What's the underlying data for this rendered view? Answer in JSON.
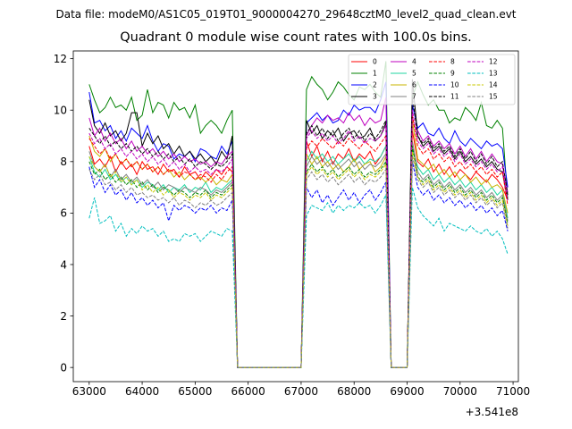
{
  "figure": {
    "suptitle": "Data file: modeM0/AS1C05_019T01_9000004270_29648cztM0_level2_quad_clean.evt"
  },
  "chart_data": {
    "type": "line",
    "title": "Quadrant 0 module wise count rates with 100.0s bins.",
    "xlabel": "",
    "ylabel": "",
    "offset_label": "+3.541e8",
    "xlim": [
      62700,
      71100
    ],
    "ylim": [
      -0.55,
      12.3
    ],
    "xticks": [
      63000,
      64000,
      65000,
      66000,
      67000,
      68000,
      69000,
      70000,
      71000
    ],
    "xtick_labels": [
      "63000",
      "64000",
      "65000",
      "66000",
      "67000",
      "68000",
      "69000",
      "70000",
      "71000"
    ],
    "yticks": [
      0,
      2,
      4,
      6,
      8,
      10,
      12
    ],
    "ytick_labels": [
      "0",
      "2",
      "4",
      "6",
      "8",
      "10",
      "12"
    ],
    "x_start": 63000,
    "x_step": 100,
    "legend_position": "top-right",
    "series": [
      {
        "name": "0",
        "color": "#ff0000",
        "dash": false,
        "seg1": [
          8.6,
          7.9,
          8.1,
          7.8,
          8.2,
          7.6,
          8.0,
          7.7,
          7.9,
          7.5,
          8.0,
          7.7,
          7.8,
          7.5,
          7.9,
          7.6,
          7.7,
          7.4,
          7.8,
          7.5,
          7.6,
          7.3,
          7.6,
          7.4,
          7.7,
          7.5,
          7.8,
          7.6
        ],
        "seg2": [
          8.8,
          8.2,
          8.6,
          8.0,
          8.4,
          7.9,
          8.3,
          8.1,
          8.5,
          8.0,
          8.3,
          8.1,
          8.4,
          7.9,
          8.2,
          8.6
        ],
        "seg3": [
          9.2,
          8.0,
          7.8,
          8.1,
          7.6,
          7.9,
          7.5,
          7.8,
          7.4,
          7.7,
          7.5,
          7.3,
          7.6,
          7.4,
          7.2,
          7.5,
          7.3,
          7.0,
          6.5
        ]
      },
      {
        "name": "1",
        "color": "#008000",
        "dash": false,
        "seg1": [
          11.0,
          10.4,
          9.9,
          10.1,
          10.5,
          10.1,
          10.2,
          10.0,
          10.5,
          9.6,
          9.8,
          10.8,
          9.9,
          10.3,
          10.2,
          9.7,
          10.3,
          10.0,
          10.1,
          9.7,
          10.2,
          9.1,
          9.4,
          9.6,
          9.4,
          9.1,
          9.6,
          10.0
        ],
        "seg2": [
          10.8,
          11.3,
          11.0,
          10.8,
          10.4,
          10.7,
          11.1,
          10.9,
          10.6,
          10.4,
          10.9,
          10.8,
          11.0,
          10.7,
          10.5,
          11.9
        ],
        "seg3": [
          10.5,
          11.1,
          10.6,
          10.2,
          10.4,
          10.0,
          10.0,
          9.5,
          9.7,
          9.6,
          10.1,
          9.9,
          9.6,
          10.3,
          9.4,
          9.3,
          9.6,
          9.3,
          6.5
        ]
      },
      {
        "name": "2",
        "color": "#0000ff",
        "dash": false,
        "seg1": [
          10.7,
          9.5,
          9.6,
          9.2,
          9.4,
          8.9,
          9.2,
          8.8,
          9.3,
          9.1,
          8.9,
          9.4,
          8.8,
          8.4,
          8.7,
          8.6,
          8.1,
          8.3,
          8.2,
          8.4,
          8.0,
          8.5,
          8.4,
          8.2,
          8.1,
          8.6,
          8.3,
          8.8
        ],
        "seg2": [
          9.5,
          9.7,
          9.9,
          9.6,
          9.8,
          9.5,
          9.6,
          10.0,
          9.8,
          10.2,
          10.0,
          10.1,
          10.1,
          9.9,
          10.4,
          11.1
        ],
        "seg3": [
          10.2,
          9.3,
          9.5,
          9.1,
          9.0,
          9.3,
          8.9,
          8.7,
          9.2,
          8.8,
          8.6,
          8.9,
          8.7,
          8.5,
          8.8,
          8.6,
          8.7,
          8.5,
          7.0
        ]
      },
      {
        "name": "3",
        "color": "#000000",
        "dash": false,
        "seg1": [
          10.4,
          9.4,
          9.1,
          9.5,
          9.0,
          9.2,
          8.8,
          9.1,
          9.9,
          9.9,
          8.6,
          9.1,
          8.7,
          9.0,
          8.5,
          8.7,
          8.3,
          8.6,
          8.2,
          8.4,
          8.1,
          8.3,
          8.0,
          8.2,
          7.9,
          8.4,
          8.1,
          9.0
        ],
        "seg2": [
          9.6,
          9.1,
          9.4,
          8.9,
          9.2,
          9.0,
          9.3,
          8.8,
          9.1,
          9.2,
          8.9,
          9.0,
          9.3,
          8.8,
          9.0,
          9.5
        ],
        "seg3": [
          11.2,
          9.0,
          8.6,
          8.8,
          8.4,
          8.6,
          8.3,
          8.5,
          8.1,
          8.4,
          8.0,
          8.2,
          7.9,
          8.1,
          7.8,
          8.0,
          7.7,
          7.6,
          6.5
        ]
      },
      {
        "name": "4",
        "color": "#bf00bf",
        "dash": false,
        "seg1": [
          9.7,
          9.0,
          9.3,
          8.8,
          9.1,
          8.7,
          8.9,
          8.5,
          8.8,
          8.4,
          8.6,
          8.3,
          8.5,
          8.2,
          8.4,
          8.1,
          8.3,
          8.0,
          8.2,
          8.0,
          8.1,
          7.9,
          8.0,
          7.8,
          8.0,
          7.9,
          8.2,
          8.4
        ],
        "seg2": [
          9.0,
          9.4,
          9.7,
          9.5,
          9.8,
          9.6,
          9.7,
          9.5,
          9.9,
          9.6,
          9.8,
          9.4,
          9.7,
          9.5,
          9.6,
          10.5
        ],
        "seg3": [
          9.5,
          9.2,
          8.8,
          9.0,
          8.6,
          8.8,
          8.5,
          8.7,
          8.3,
          8.6,
          8.2,
          8.5,
          8.1,
          8.4,
          8.0,
          8.3,
          8.0,
          7.9,
          6.8
        ]
      },
      {
        "name": "5",
        "color": "#1fd6a0",
        "dash": false,
        "seg1": [
          8.2,
          7.6,
          7.4,
          7.7,
          7.3,
          7.5,
          7.2,
          7.4,
          7.1,
          7.3,
          7.0,
          7.2,
          7.1,
          6.9,
          7.1,
          6.8,
          7.0,
          6.9,
          7.1,
          6.8,
          7.0,
          6.9,
          7.2,
          6.8,
          7.0,
          6.9,
          7.1,
          7.3
        ],
        "seg2": [
          8.0,
          8.4,
          8.1,
          8.3,
          8.0,
          8.2,
          7.9,
          8.1,
          8.3,
          8.0,
          8.2,
          7.9,
          8.1,
          8.0,
          8.2,
          8.6
        ],
        "seg3": [
          8.5,
          7.8,
          7.5,
          7.7,
          7.3,
          7.5,
          7.2,
          7.4,
          7.1,
          7.3,
          7.0,
          7.2,
          6.9,
          7.1,
          6.8,
          7.0,
          6.7,
          6.9,
          5.8
        ]
      },
      {
        "name": "6",
        "color": "#c8b400",
        "dash": false,
        "seg1": [
          9.0,
          8.4,
          8.2,
          8.5,
          8.0,
          8.3,
          7.9,
          8.1,
          7.8,
          8.0,
          7.7,
          7.9,
          7.6,
          7.8,
          7.5,
          7.7,
          7.4,
          7.6,
          7.3,
          7.5,
          7.3,
          7.4,
          7.2,
          7.4,
          7.1,
          7.3,
          7.2,
          7.5
        ],
        "seg2": [
          8.3,
          7.9,
          8.2,
          7.8,
          8.0,
          7.7,
          7.9,
          7.6,
          7.8,
          8.1,
          7.7,
          7.9,
          8.0,
          7.6,
          7.8,
          8.2
        ],
        "seg3": [
          9.6,
          8.1,
          7.9,
          7.7,
          7.9,
          7.5,
          7.7,
          7.4,
          7.6,
          7.3,
          7.5,
          7.2,
          7.4,
          7.1,
          7.3,
          7.0,
          7.1,
          6.9,
          6.0
        ]
      },
      {
        "name": "7",
        "color": "#808080",
        "dash": false,
        "seg1": [
          8.4,
          7.8,
          7.6,
          7.9,
          7.4,
          7.7,
          7.3,
          7.5,
          7.2,
          7.4,
          7.1,
          7.3,
          7.0,
          7.2,
          6.9,
          7.1,
          7.0,
          6.8,
          7.0,
          6.9,
          6.8,
          7.0,
          6.9,
          6.7,
          6.9,
          6.8,
          7.0,
          7.2
        ],
        "seg2": [
          7.8,
          8.2,
          7.9,
          8.1,
          7.8,
          8.0,
          7.7,
          7.9,
          8.1,
          7.8,
          8.0,
          7.7,
          7.9,
          7.8,
          8.0,
          8.3
        ],
        "seg3": [
          8.8,
          7.6,
          7.3,
          7.5,
          7.1,
          7.3,
          7.0,
          7.2,
          6.9,
          7.1,
          6.8,
          7.0,
          6.7,
          6.9,
          6.6,
          6.8,
          6.5,
          6.7,
          5.7
        ]
      },
      {
        "name": "8",
        "color": "#ff0000",
        "dash": true,
        "seg1": [
          8.9,
          8.6,
          8.3,
          8.5,
          8.1,
          8.3,
          7.9,
          8.1,
          7.8,
          8.0,
          7.7,
          7.9,
          7.6,
          7.8,
          7.5,
          7.7,
          7.6,
          7.4,
          7.6,
          7.5,
          7.3,
          7.5,
          7.4,
          7.2,
          7.5,
          7.3,
          7.6,
          7.8
        ],
        "seg2": [
          8.5,
          8.8,
          8.6,
          8.9,
          8.7,
          8.5,
          8.8,
          8.6,
          8.9,
          8.7,
          8.5,
          8.8,
          8.6,
          8.4,
          8.7,
          9.0
        ],
        "seg3": [
          9.8,
          8.6,
          8.3,
          8.5,
          8.1,
          8.3,
          8.0,
          8.2,
          7.8,
          8.0,
          7.7,
          7.9,
          7.6,
          7.8,
          7.5,
          7.7,
          7.4,
          7.6,
          6.3
        ]
      },
      {
        "name": "9",
        "color": "#008000",
        "dash": true,
        "seg1": [
          8.0,
          7.5,
          7.7,
          7.3,
          7.5,
          7.2,
          7.4,
          7.1,
          7.3,
          7.0,
          7.2,
          6.9,
          7.1,
          6.8,
          7.0,
          6.9,
          6.7,
          6.9,
          6.8,
          6.6,
          6.8,
          6.7,
          6.9,
          6.6,
          6.8,
          6.7,
          6.9,
          7.1
        ],
        "seg2": [
          7.6,
          7.9,
          7.6,
          7.8,
          7.5,
          7.7,
          7.4,
          7.6,
          7.8,
          7.5,
          7.7,
          7.4,
          7.6,
          7.5,
          7.7,
          8.0
        ],
        "seg3": [
          8.6,
          7.4,
          7.2,
          7.4,
          7.0,
          7.2,
          6.9,
          7.1,
          6.8,
          7.0,
          6.7,
          6.9,
          6.6,
          6.8,
          6.5,
          6.7,
          6.4,
          6.6,
          5.6
        ]
      },
      {
        "name": "10",
        "color": "#0000ff",
        "dash": true,
        "seg1": [
          7.8,
          7.0,
          7.3,
          6.8,
          7.1,
          6.7,
          6.9,
          6.5,
          6.8,
          6.4,
          6.6,
          6.3,
          6.5,
          6.2,
          6.4,
          5.7,
          6.3,
          6.1,
          6.3,
          6.2,
          6.0,
          6.2,
          6.1,
          6.3,
          6.0,
          6.2,
          6.1,
          6.5
        ],
        "seg2": [
          7.0,
          6.6,
          6.9,
          6.4,
          6.7,
          6.3,
          6.6,
          6.9,
          6.5,
          6.8,
          6.4,
          6.7,
          6.9,
          6.5,
          6.8,
          7.2
        ],
        "seg3": [
          8.0,
          7.0,
          6.7,
          6.9,
          6.5,
          6.7,
          6.4,
          6.6,
          6.3,
          6.5,
          6.2,
          6.4,
          6.1,
          6.3,
          6.0,
          6.2,
          5.9,
          6.1,
          5.3
        ]
      },
      {
        "name": "11",
        "color": "#000000",
        "dash": true,
        "seg1": [
          9.3,
          9.0,
          8.7,
          9.0,
          8.6,
          8.8,
          8.5,
          8.7,
          8.4,
          8.6,
          8.3,
          8.5,
          8.2,
          8.4,
          8.1,
          8.3,
          8.0,
          8.2,
          7.9,
          8.1,
          7.8,
          8.0,
          7.9,
          7.7,
          7.9,
          7.8,
          8.0,
          8.3
        ],
        "seg2": [
          9.1,
          9.4,
          9.0,
          9.3,
          8.9,
          9.2,
          8.8,
          9.1,
          9.3,
          8.9,
          9.2,
          8.8,
          9.1,
          8.9,
          9.2,
          9.6
        ],
        "seg3": [
          10.5,
          9.0,
          8.7,
          8.9,
          8.5,
          8.7,
          8.4,
          8.6,
          8.2,
          8.5,
          8.1,
          8.4,
          8.0,
          8.3,
          7.9,
          8.2,
          7.8,
          8.0,
          6.7
        ]
      },
      {
        "name": "12",
        "color": "#bf00bf",
        "dash": true,
        "seg1": [
          9.1,
          8.7,
          8.9,
          8.5,
          8.7,
          8.3,
          8.5,
          8.2,
          8.4,
          8.1,
          8.3,
          8.0,
          8.2,
          7.9,
          8.1,
          7.8,
          8.0,
          7.7,
          7.9,
          7.6,
          7.8,
          7.6,
          7.7,
          7.5,
          7.7,
          7.6,
          7.8,
          8.1
        ],
        "seg2": [
          8.9,
          9.2,
          8.9,
          9.1,
          8.8,
          9.0,
          8.7,
          8.9,
          9.2,
          8.8,
          9.0,
          8.7,
          8.9,
          8.8,
          9.0,
          9.4
        ],
        "seg3": [
          10.0,
          8.8,
          8.5,
          8.7,
          8.3,
          8.5,
          8.2,
          8.4,
          8.0,
          8.3,
          7.9,
          8.1,
          7.8,
          8.0,
          7.7,
          7.9,
          7.6,
          7.8,
          6.5
        ]
      },
      {
        "name": "13",
        "color": "#00bfbf",
        "dash": true,
        "seg1": [
          5.8,
          6.6,
          5.6,
          5.7,
          5.9,
          5.3,
          5.6,
          5.1,
          5.4,
          5.2,
          5.5,
          5.3,
          5.4,
          5.1,
          5.3,
          4.9,
          5.0,
          4.9,
          5.2,
          5.1,
          5.2,
          4.9,
          5.1,
          5.3,
          5.2,
          5.1,
          5.4,
          5.3
        ],
        "seg2": [
          5.9,
          6.3,
          6.2,
          6.1,
          6.4,
          6.0,
          6.3,
          6.1,
          6.3,
          6.2,
          6.4,
          6.2,
          6.3,
          6.0,
          6.3,
          6.7
        ],
        "seg3": [
          7.0,
          6.2,
          5.9,
          5.7,
          5.5,
          5.8,
          5.3,
          5.6,
          5.5,
          5.4,
          5.3,
          5.5,
          5.3,
          5.2,
          5.4,
          5.1,
          5.3,
          5.0,
          4.4
        ]
      },
      {
        "name": "14",
        "color": "#c8c800",
        "dash": true,
        "seg1": [
          8.2,
          7.8,
          7.6,
          7.9,
          7.4,
          7.6,
          7.2,
          7.4,
          7.1,
          7.3,
          6.9,
          7.1,
          6.8,
          7.0,
          6.7,
          6.9,
          6.6,
          6.8,
          6.7,
          6.5,
          6.7,
          6.6,
          6.8,
          6.5,
          6.7,
          6.6,
          6.8,
          7.0
        ],
        "seg2": [
          7.5,
          7.8,
          7.5,
          7.7,
          7.4,
          7.6,
          7.3,
          7.5,
          7.7,
          7.4,
          7.6,
          7.3,
          7.5,
          7.4,
          7.6,
          7.9
        ],
        "seg3": [
          8.4,
          7.4,
          7.1,
          7.3,
          6.9,
          7.1,
          6.8,
          7.0,
          6.7,
          6.9,
          6.6,
          6.8,
          6.5,
          6.7,
          6.4,
          6.6,
          6.3,
          6.5,
          5.5
        ]
      },
      {
        "name": "15",
        "color": "#808080",
        "dash": true,
        "seg1": [
          7.7,
          7.3,
          7.5,
          7.1,
          7.2,
          6.9,
          7.1,
          6.8,
          7.0,
          6.7,
          6.8,
          6.6,
          6.7,
          6.5,
          6.6,
          6.4,
          6.6,
          6.3,
          6.5,
          6.4,
          6.2,
          6.4,
          6.3,
          6.5,
          6.3,
          6.4,
          6.6,
          6.8
        ],
        "seg2": [
          7.3,
          7.6,
          7.3,
          7.5,
          7.2,
          7.4,
          7.1,
          7.3,
          7.5,
          7.2,
          7.4,
          7.1,
          7.3,
          7.2,
          7.4,
          7.7
        ],
        "seg3": [
          8.2,
          7.3,
          7.0,
          7.2,
          6.8,
          7.0,
          6.7,
          6.9,
          6.6,
          6.8,
          6.5,
          6.7,
          6.4,
          6.6,
          6.3,
          6.5,
          6.2,
          6.4,
          5.4
        ]
      }
    ]
  }
}
